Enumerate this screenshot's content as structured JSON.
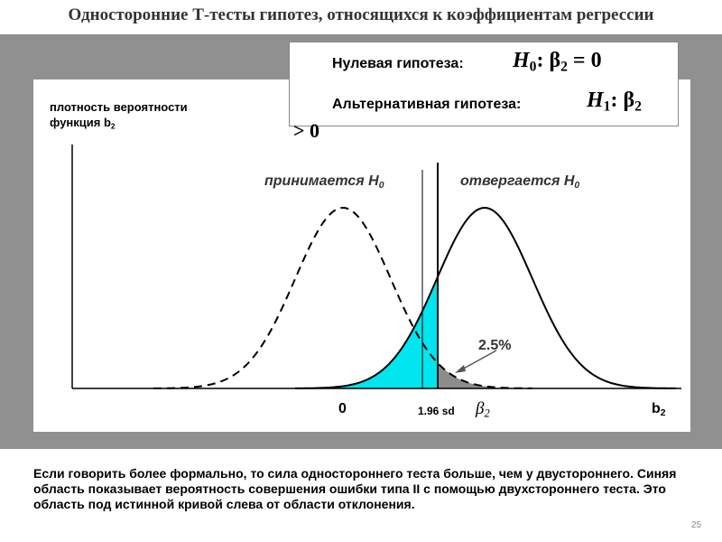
{
  "title": "Односторонние Т-тесты гипотез, относящихся к коэффициентам регрессии",
  "hypotheses": {
    "null_label": "Нулевая гипотеза:",
    "null_formula": [
      "H",
      "0",
      ": β",
      "2",
      " = 0"
    ],
    "alt_label": "Альтернативная гипотеза:",
    "alt_formula": [
      "H",
      "1",
      ": β",
      "2"
    ],
    "alt_formula_rest": "> 0"
  },
  "diagram": {
    "y_axis_label": [
      "плотность вероятности",
      "функция b",
      "2"
    ],
    "accept_label": [
      "принимается H",
      "0"
    ],
    "reject_label": [
      "отвергается H",
      "0"
    ],
    "tail_label": "2.5%",
    "x_labels": {
      "zero": "0",
      "critical": "1.96 sd",
      "beta": [
        "β",
        "2"
      ],
      "axis": [
        "b",
        "2"
      ]
    }
  },
  "footer": {
    "text": "Если говорить более формально, то сила одностороннего теста больше, чем у двустороннего. Синяя область показывает вероятность совершения ошибки типа II с помощью двухстороннего теста.  Это область под истинной кривой слева от области отклонения.",
    "page_number": "25"
  }
}
